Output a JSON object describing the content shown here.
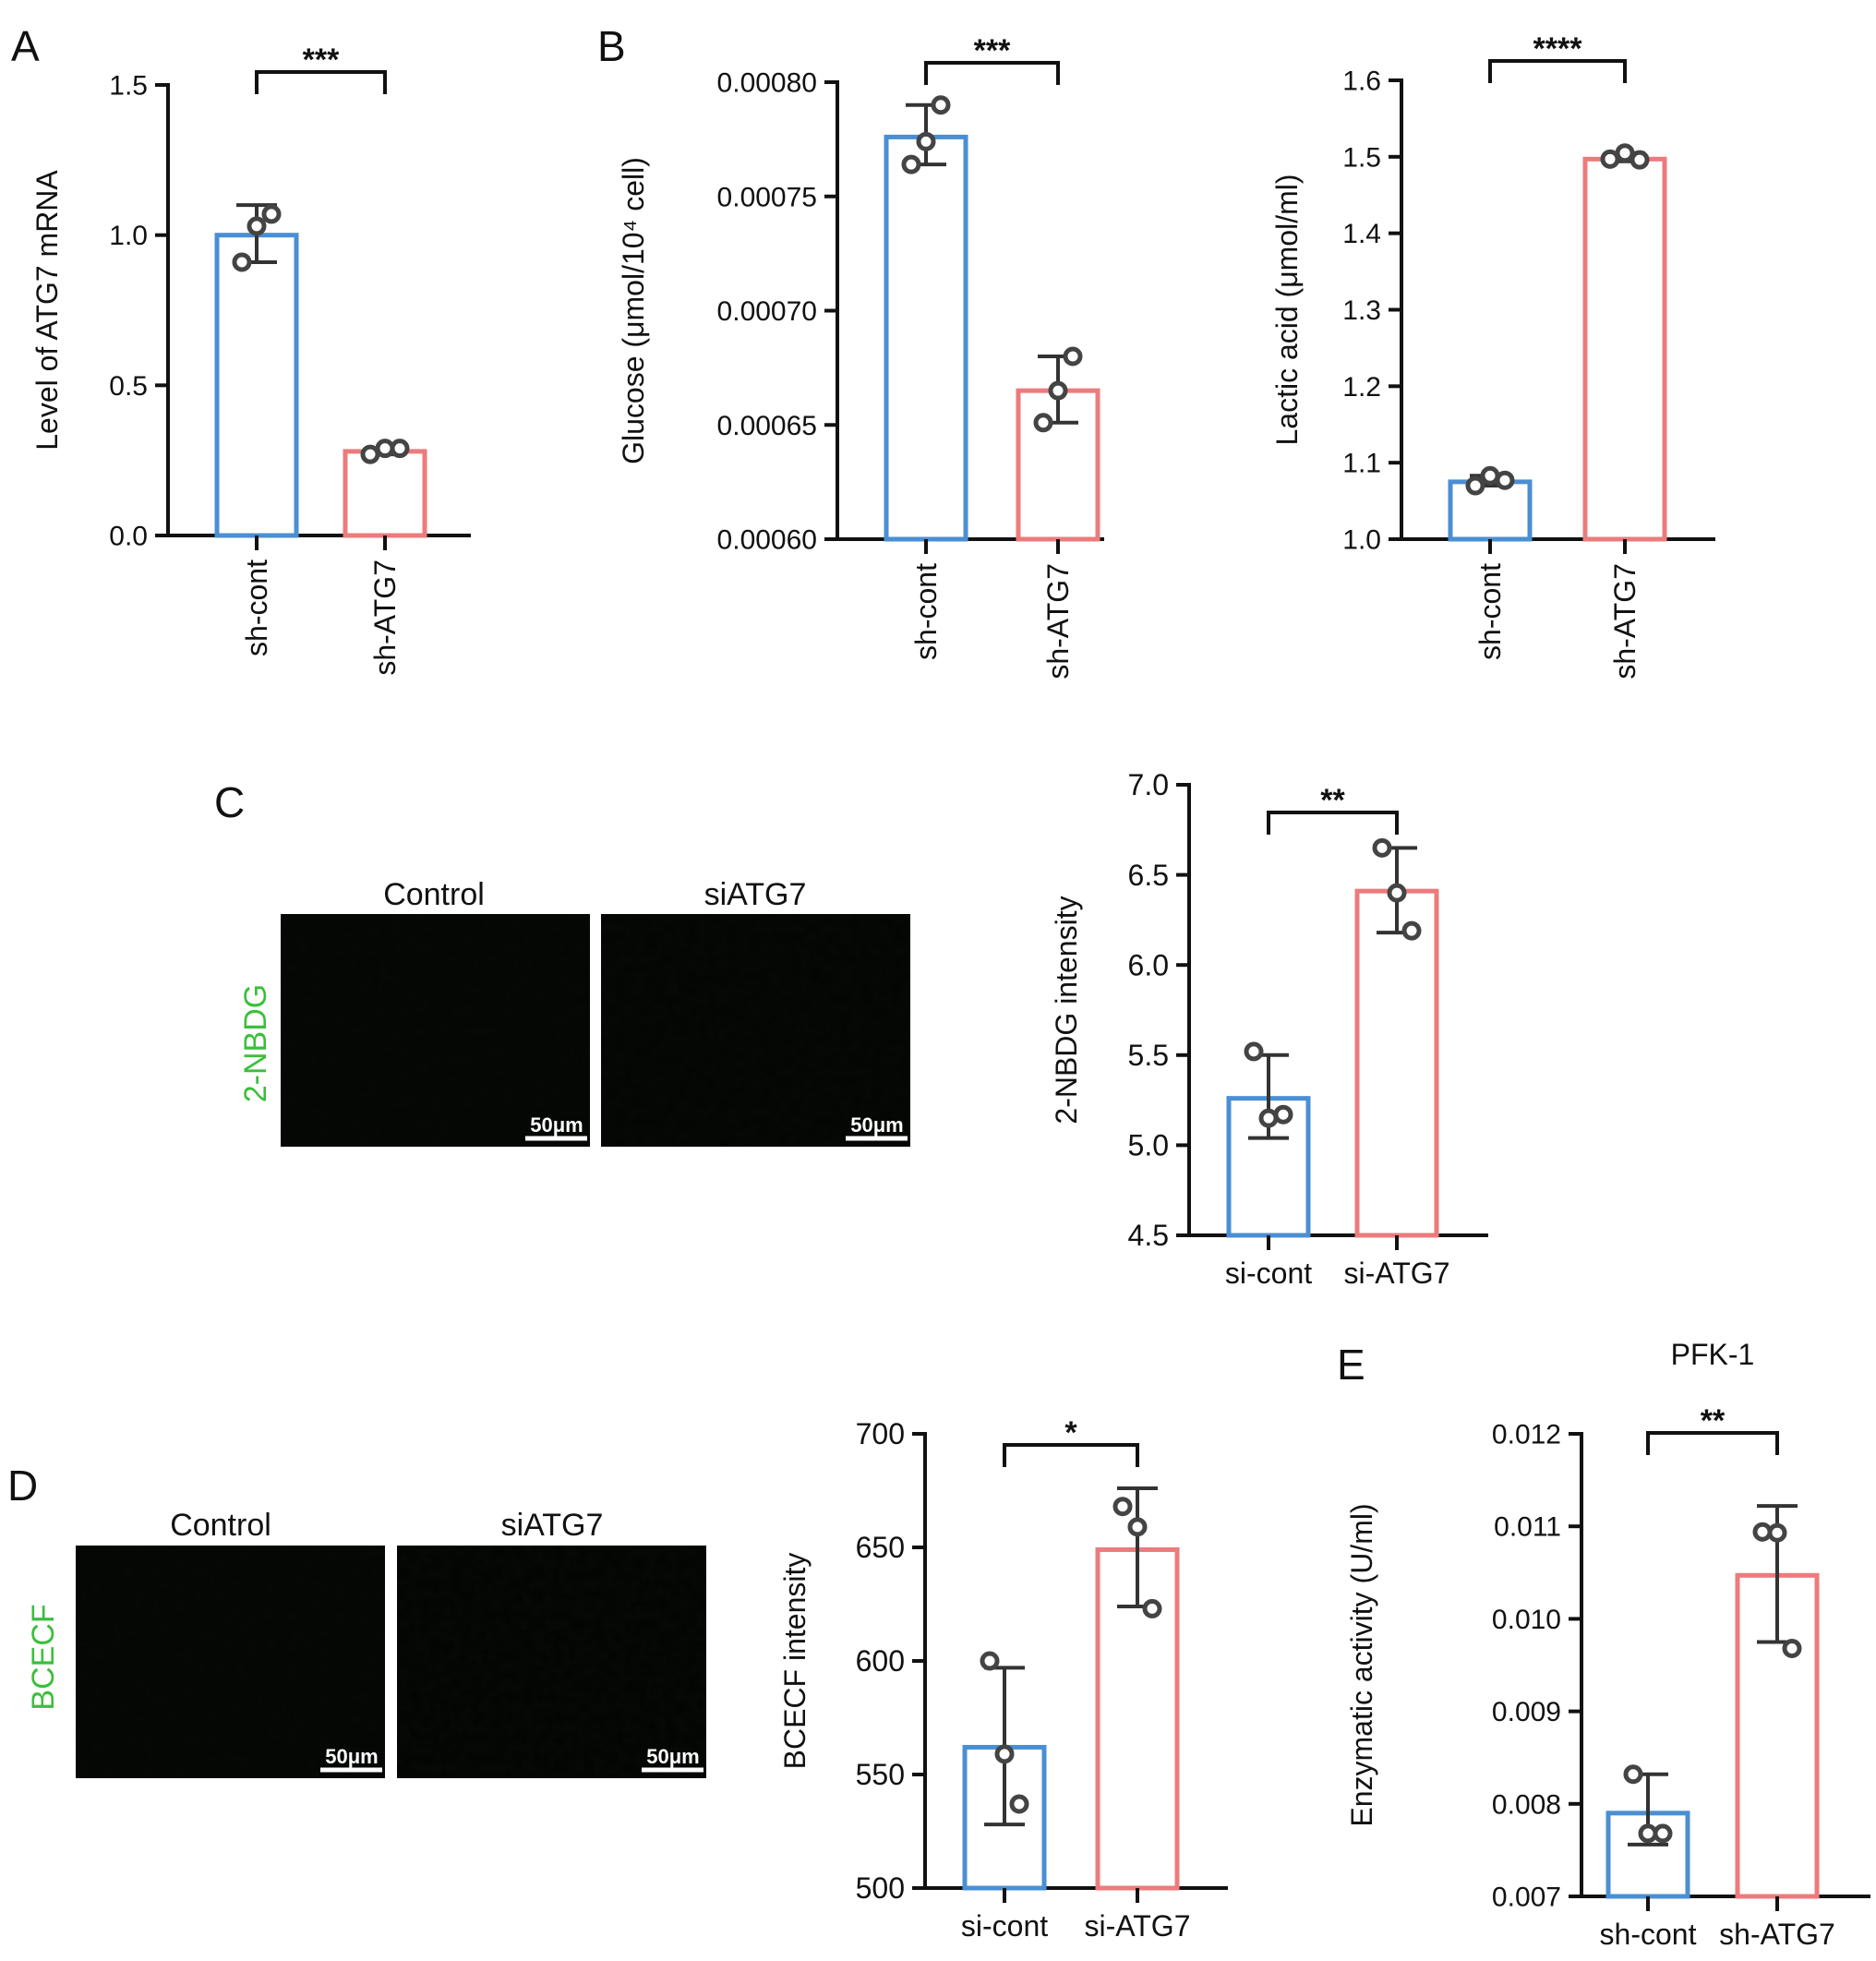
{
  "figure": {
    "panel_labels": {
      "A": "A",
      "B": "B",
      "C": "C",
      "D": "D",
      "E": "E"
    }
  },
  "colors": {
    "control_bar": "#4a8fd4",
    "treatment_bar": "#ec7b7d",
    "points": "#444444",
    "stain_green": "#3bbf3b",
    "axis": "#111111"
  },
  "micrographs": {
    "C": {
      "row_label": "2-NBDG",
      "images": [
        {
          "title": "Control",
          "scale_bar": "50μm",
          "fluorescence_level": 0.25
        },
        {
          "title": "siATG7",
          "scale_bar": "50μm",
          "fluorescence_level": 0.55
        }
      ]
    },
    "D": {
      "row_label": "BCECF",
      "images": [
        {
          "title": "Control",
          "scale_bar": "50μm",
          "fluorescence_level": 0.2
        },
        {
          "title": "siATG7",
          "scale_bar": "50μm",
          "fluorescence_level": 0.9
        }
      ]
    }
  },
  "chart_data": [
    {
      "id": "A",
      "type": "bar",
      "title": "",
      "ylabel": "Level of ATG7 mRNA",
      "ylim": [
        0,
        1.5
      ],
      "yticks": [
        "0.0",
        "0.5",
        "1.0",
        "1.5"
      ],
      "categories": [
        "sh-cont",
        "sh-ATG7"
      ],
      "category_label_rotation": "vertical",
      "values": [
        1.0,
        0.28
      ],
      "errors": [
        [
          0.91,
          1.1
        ],
        [
          0.27,
          0.29
        ]
      ],
      "points": [
        [
          0.91,
          1.03,
          1.07
        ],
        [
          0.27,
          0.29,
          0.29
        ]
      ],
      "significance": "***"
    },
    {
      "id": "B1",
      "type": "bar",
      "title": "",
      "ylabel": "Glucose (μmol/10⁴ cell)",
      "ylim": [
        0.0006,
        0.0008
      ],
      "yticks": [
        "0.00060",
        "0.00065",
        "0.00070",
        "0.00075",
        "0.00080"
      ],
      "categories": [
        "sh-cont",
        "sh-ATG7"
      ],
      "category_label_rotation": "vertical",
      "values": [
        0.000776,
        0.000665
      ],
      "errors": [
        [
          0.000764,
          0.00079
        ],
        [
          0.000651,
          0.00068
        ]
      ],
      "points": [
        [
          0.000764,
          0.000774,
          0.00079
        ],
        [
          0.000651,
          0.000665,
          0.00068
        ]
      ],
      "significance": "***"
    },
    {
      "id": "B2",
      "type": "bar",
      "title": "",
      "ylabel": "Lactic acid (μmol/ml)",
      "ylim": [
        1.0,
        1.6
      ],
      "yticks": [
        "1.0",
        "1.1",
        "1.2",
        "1.3",
        "1.4",
        "1.5",
        "1.6"
      ],
      "categories": [
        "sh-cont",
        "sh-ATG7"
      ],
      "category_label_rotation": "vertical",
      "values": [
        1.075,
        1.497
      ],
      "errors": [
        [
          1.07,
          1.083
        ],
        [
          1.494,
          1.505
        ]
      ],
      "points": [
        [
          1.07,
          1.083,
          1.077
        ],
        [
          1.497,
          1.505,
          1.496
        ]
      ],
      "significance": "****"
    },
    {
      "id": "C",
      "type": "bar",
      "title": "",
      "ylabel": "2-NBDG intensity",
      "ylim": [
        4.5,
        7.0
      ],
      "yticks": [
        "4.5",
        "5.0",
        "5.5",
        "6.0",
        "6.5",
        "7.0"
      ],
      "categories": [
        "si-cont",
        "si-ATG7"
      ],
      "category_label_rotation": "horizontal",
      "values": [
        5.26,
        6.41
      ],
      "errors": [
        [
          5.04,
          5.5
        ],
        [
          6.18,
          6.65
        ]
      ],
      "points": [
        [
          5.52,
          5.15,
          5.17
        ],
        [
          6.65,
          6.4,
          6.19
        ]
      ],
      "significance": "**"
    },
    {
      "id": "D",
      "type": "bar",
      "title": "",
      "ylabel": "BCECF intensity",
      "ylim": [
        500,
        700
      ],
      "yticks": [
        "500",
        "550",
        "600",
        "650",
        "700"
      ],
      "categories": [
        "si-cont",
        "si-ATG7"
      ],
      "category_label_rotation": "horizontal",
      "values": [
        562,
        649
      ],
      "errors": [
        [
          528,
          597
        ],
        [
          624,
          676
        ]
      ],
      "points": [
        [
          600,
          559,
          537
        ],
        [
          668,
          659,
          623
        ]
      ],
      "significance": "*"
    },
    {
      "id": "E",
      "type": "bar",
      "title": "PFK-1",
      "ylabel": "Enzymatic activity (U/ml)",
      "ylim": [
        0.007,
        0.012
      ],
      "yticks": [
        "0.007",
        "0.008",
        "0.009",
        "0.010",
        "0.011",
        "0.012"
      ],
      "categories": [
        "sh-cont",
        "sh-ATG7"
      ],
      "category_label_rotation": "horizontal",
      "values": [
        0.0079,
        0.01047
      ],
      "errors": [
        [
          0.00756,
          0.00832
        ],
        [
          0.00975,
          0.01122
        ]
      ],
      "points": [
        [
          0.00832,
          0.00768,
          0.00768
        ],
        [
          0.01094,
          0.01093,
          0.00968
        ]
      ],
      "significance": "**"
    }
  ]
}
